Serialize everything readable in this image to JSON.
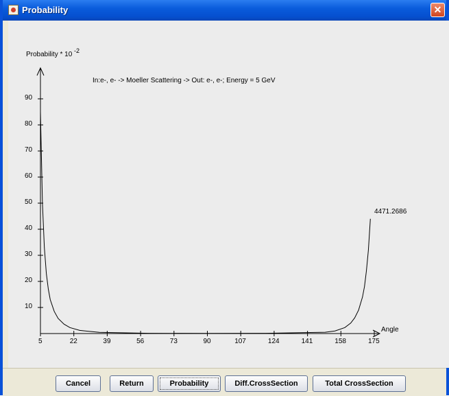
{
  "window": {
    "title": "Probability",
    "close_glyph": "✕",
    "icon": "java-cup-icon"
  },
  "chart": {
    "ylabel": "Probability * 10",
    "ylabel_exponent": "-2",
    "title": "In:e-, e-  -> Moeller Scattering -> Out: e-, e-; Energy = 5 GeV",
    "xlabel": "Angle",
    "max_annotation": "4471.2686",
    "x_ticks": [
      "5",
      "22",
      "39",
      "56",
      "73",
      "90",
      "107",
      "124",
      "141",
      "158",
      "175"
    ],
    "y_ticks": [
      "10",
      "20",
      "30",
      "40",
      "50",
      "60",
      "70",
      "80",
      "90"
    ]
  },
  "chart_data": {
    "type": "line",
    "title": "In:e-, e-  -> Moeller Scattering -> Out: e-, e-; Energy = 5 GeV",
    "xlabel": "Angle",
    "ylabel": "Probability * 10^-2",
    "xlim": [
      5,
      175
    ],
    "ylim": [
      0,
      100
    ],
    "x_ticks": [
      5,
      22,
      39,
      56,
      73,
      90,
      107,
      124,
      141,
      158,
      175
    ],
    "y_ticks": [
      10,
      20,
      30,
      40,
      50,
      60,
      70,
      80,
      90
    ],
    "grid": false,
    "series": [
      {
        "x": [
          5,
          6,
          7,
          8,
          9,
          10,
          12,
          14,
          17,
          20,
          25,
          35,
          60,
          90,
          120,
          150,
          155,
          160,
          163,
          165,
          167,
          169,
          170,
          171,
          172,
          173
        ],
        "y": [
          85,
          50,
          33,
          23,
          17,
          13,
          8.5,
          5.8,
          3.6,
          2.3,
          1.2,
          0.45,
          0.1,
          0.05,
          0.1,
          0.5,
          1,
          2.3,
          4,
          6,
          9,
          14,
          18,
          24,
          32,
          44
        ]
      }
    ],
    "annotations": [
      "4471.2686"
    ]
  },
  "buttons": {
    "cancel": "Cancel",
    "return": "Return",
    "probability": "Probability",
    "diff_cross_section": "Diff.CrossSection",
    "total_cross_section": "Total CrossSection"
  }
}
